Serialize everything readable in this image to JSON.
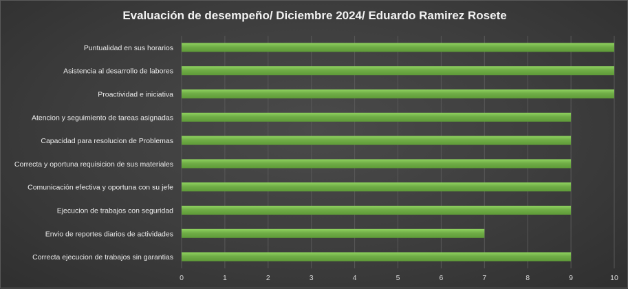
{
  "chart_data": {
    "type": "bar",
    "orientation": "horizontal",
    "title": "Evaluación de desempeño/ Diciembre 2024/ Eduardo Ramirez Rosete",
    "xlabel": "",
    "ylabel": "",
    "categories": [
      "Puntualidad en sus horarios",
      "Asistencia al desarrollo de labores",
      "Proactividad e iniciativa",
      "Atencion y seguimiento de tareas asignadas",
      "Capacidad para resolucion de Problemas",
      "Correcta y oportuna requisicion de sus materiales",
      "Comunicación  efectiva y oportuna con su jefe",
      "Ejecucion de trabajos con seguridad",
      "Envio de reportes diarios de actividades",
      "Correcta ejecucion de trabajos sin garantias"
    ],
    "values": [
      10,
      10,
      10,
      9,
      9,
      9,
      9,
      9,
      7,
      9
    ],
    "xlim": [
      0,
      10
    ],
    "ticks": [
      "0",
      "1",
      "2",
      "3",
      "4",
      "5",
      "6",
      "7",
      "8",
      "9",
      "10"
    ],
    "grid": true,
    "legend": "none",
    "colors": {
      "bar": "#70ad47",
      "bar_highlight": "#8fd25f",
      "grid": "#595959",
      "background": "#404040",
      "text": "#ececec"
    }
  }
}
